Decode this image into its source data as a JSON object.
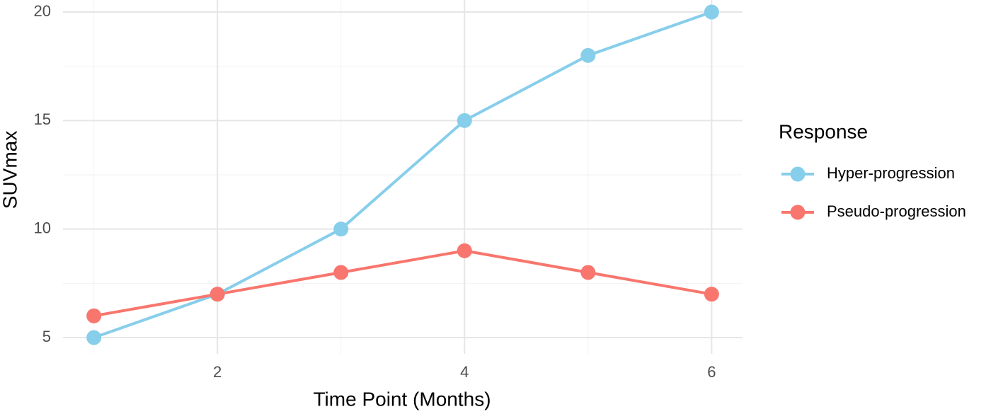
{
  "chart_data": {
    "type": "line",
    "x_label": "Time Point (Months)",
    "y_label": "SUVmax",
    "x": [
      1,
      2,
      3,
      4,
      5,
      6
    ],
    "series": [
      {
        "name": "Hyper-progression",
        "color": "#87ceeb",
        "values": [
          5,
          7,
          10,
          15,
          18,
          20
        ]
      },
      {
        "name": "Pseudo-progression",
        "color": "#f8766d",
        "values": [
          6,
          7,
          8,
          9,
          8,
          7
        ]
      }
    ],
    "xlim": [
      0.75,
      6.25
    ],
    "xticks": [
      2,
      4,
      6
    ],
    "ylim": [
      4.25,
      20.75
    ],
    "yticks": [
      5,
      10,
      15,
      20
    ],
    "x_minor_grid": [
      1,
      3,
      5
    ],
    "y_minor_grid": [
      7.5,
      12.5,
      17.5
    ],
    "grid": true,
    "legend_title": "Response",
    "legend_position": "right"
  }
}
